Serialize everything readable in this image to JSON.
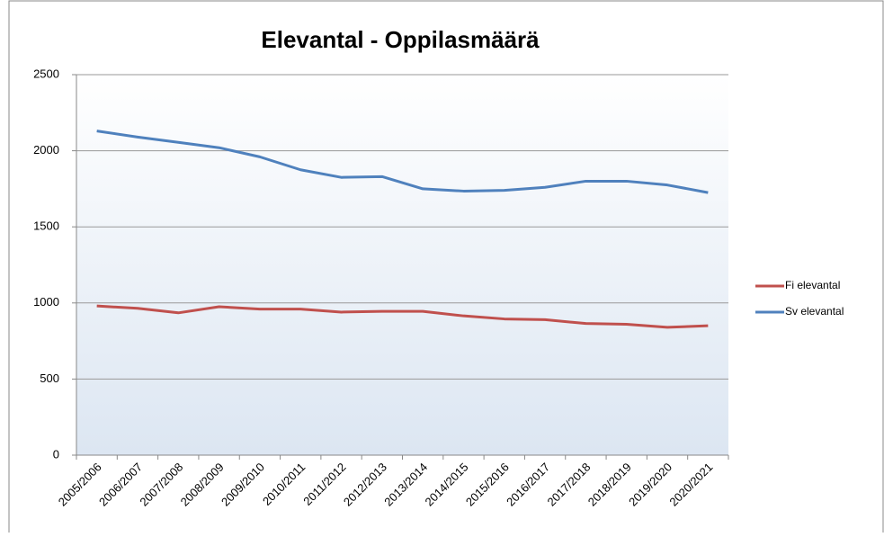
{
  "chart_data": {
    "type": "line",
    "title": "Elevantal - Oppilasmäärä",
    "categories": [
      "2005/2006",
      "2006/2007",
      "2007/2008",
      "2008/2009",
      "2009/2010",
      "2010/2011",
      "2011/2012",
      "2012/2013",
      "2013/2014",
      "2014/2015",
      "2015/2016",
      "2016/2017",
      "2017/2018",
      "2018/2019",
      "2019/2020",
      "2020/2021"
    ],
    "series": [
      {
        "name": "Fi elevantal",
        "color": "#c0504d",
        "values": [
          980,
          965,
          935,
          975,
          960,
          960,
          940,
          945,
          945,
          915,
          895,
          890,
          865,
          860,
          840,
          850
        ]
      },
      {
        "name": "Sv elevantal",
        "color": "#4f81bd",
        "values": [
          2130,
          2090,
          2055,
          2020,
          1960,
          1875,
          1825,
          1830,
          1750,
          1735,
          1740,
          1760,
          1800,
          1800,
          1775,
          1725
        ]
      }
    ],
    "ylim": [
      0,
      2500
    ],
    "yticks": [
      0,
      500,
      1000,
      1500,
      2000,
      2500
    ],
    "grid": true,
    "legend": "right"
  }
}
